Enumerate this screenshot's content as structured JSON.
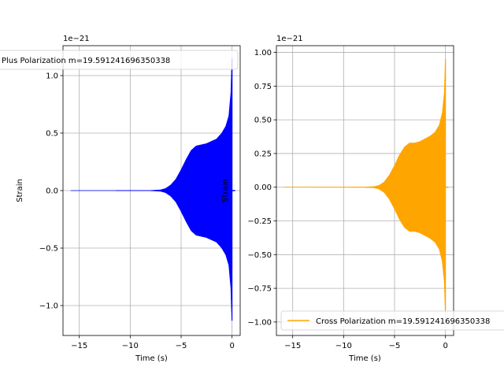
{
  "chart_data": [
    {
      "type": "line",
      "title": "",
      "xlabel": "Time (s)",
      "ylabel": "Strain",
      "y_offset_label": "1e−21",
      "xlim": [
        -16.6,
        0.8
      ],
      "ylim": [
        -1.26,
        1.26
      ],
      "xticks": [
        -15,
        -10,
        -5,
        0
      ],
      "xtick_labels": [
        "−15",
        "−10",
        "−5",
        "0"
      ],
      "yticks": [
        -1.0,
        -0.5,
        0.0,
        0.5,
        1.0
      ],
      "ytick_labels": [
        "−1.0",
        "−0.5",
        "0.0",
        "0.5",
        "1.0"
      ],
      "grid": true,
      "legend_position": "upper-left",
      "series": [
        {
          "name": "Plus Polarization m=19.591241696350338",
          "color": "#0000ff",
          "envelope": {
            "x": [
              -15.8,
              -8.0,
              -7.0,
              -6.5,
              -6.0,
              -5.5,
              -5.0,
              -4.5,
              -4.0,
              -3.5,
              -3.0,
              -2.5,
              -2.0,
              -1.5,
              -1.0,
              -0.6,
              -0.3,
              -0.1,
              0.0
            ],
            "y": [
              0.002,
              0.003,
              0.008,
              0.02,
              0.05,
              0.1,
              0.18,
              0.27,
              0.35,
              0.39,
              0.4,
              0.41,
              0.43,
              0.45,
              0.5,
              0.56,
              0.65,
              0.85,
              1.15
            ]
          },
          "post_merger_x": [
            0.0,
            0.3
          ],
          "post_merger_y": [
            0.0,
            0.0
          ]
        }
      ]
    },
    {
      "type": "line",
      "title": "",
      "xlabel": "Time (s)",
      "ylabel": "Strain",
      "y_offset_label": "1e−21",
      "xlim": [
        -16.6,
        0.8
      ],
      "ylim": [
        -1.1,
        1.05
      ],
      "xticks": [
        -15,
        -10,
        -5,
        0
      ],
      "xtick_labels": [
        "−15",
        "−10",
        "−5",
        "0"
      ],
      "yticks": [
        -1.0,
        -0.75,
        -0.5,
        -0.25,
        0.0,
        0.25,
        0.5,
        0.75,
        1.0
      ],
      "ytick_labels": [
        "−1.00",
        "−0.75",
        "−0.50",
        "−0.25",
        "0.00",
        "0.25",
        "0.50",
        "0.75",
        "1.00"
      ],
      "grid": true,
      "legend_position": "lower-left",
      "series": [
        {
          "name": "Cross Polarization m=19.591241696350338",
          "color": "#ffa500",
          "envelope": {
            "x": [
              -15.8,
              -8.0,
              -7.0,
              -6.5,
              -6.0,
              -5.5,
              -5.0,
              -4.5,
              -4.0,
              -3.5,
              -3.0,
              -2.5,
              -2.0,
              -1.5,
              -1.0,
              -0.6,
              -0.3,
              -0.1,
              0.0
            ],
            "y": [
              0.002,
              0.003,
              0.006,
              0.015,
              0.04,
              0.09,
              0.16,
              0.24,
              0.3,
              0.33,
              0.33,
              0.34,
              0.36,
              0.38,
              0.41,
              0.46,
              0.55,
              0.7,
              0.95
            ]
          },
          "post_merger_x": [
            0.0,
            0.3
          ],
          "post_merger_y": [
            0.0,
            0.0
          ]
        }
      ]
    }
  ]
}
